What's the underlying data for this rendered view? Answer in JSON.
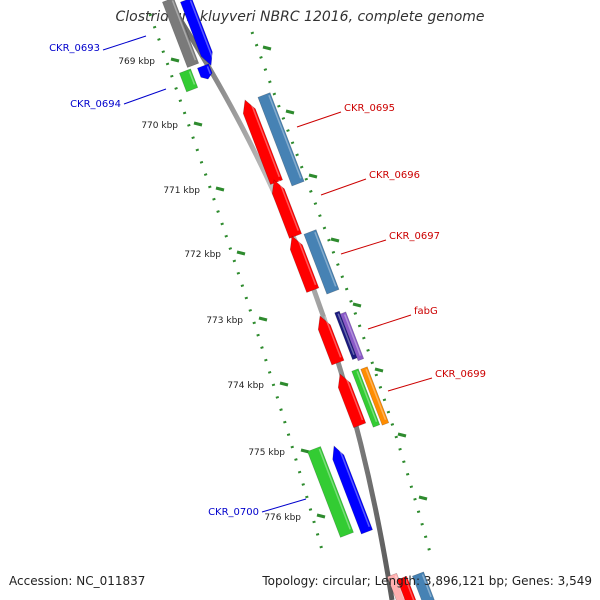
{
  "title": "Clostridium kluyveri NBRC 12016, complete genome",
  "footer": {
    "accession": "Accession: NC_011837",
    "summary": "Topology: circular; Length: 3,896,121 bp; Genes: 3,549"
  },
  "colors": {
    "backbone": "#8a8a8a",
    "tick": "#2e8b2e",
    "forward_label": "#0000cc",
    "reverse_label": "#cc0000",
    "cds_red": "#ff0000",
    "cds_blue": "#0000ff",
    "cds_green": "#33cc33",
    "cds_steelblue": "#4682b4",
    "cds_navy": "#1a1a80",
    "cds_purple": "#8a5ac8",
    "cds_orange": "#ff8c00",
    "cds_gray": "#7a7a7a"
  },
  "kbp_ticks": [
    "769 kbp",
    "770 kbp",
    "771 kbp",
    "772 kbp",
    "773 kbp",
    "774 kbp",
    "775 kbp",
    "776 kbp"
  ],
  "gene_labels": [
    {
      "name": "CKR_0693",
      "strand": "forward"
    },
    {
      "name": "CKR_0694",
      "strand": "forward"
    },
    {
      "name": "CKR_0695",
      "strand": "reverse"
    },
    {
      "name": "CKR_0696",
      "strand": "reverse"
    },
    {
      "name": "CKR_0697",
      "strand": "reverse"
    },
    {
      "name": "fabG",
      "strand": "reverse"
    },
    {
      "name": "CKR_0699",
      "strand": "reverse"
    },
    {
      "name": "CKR_0700",
      "strand": "forward"
    }
  ]
}
